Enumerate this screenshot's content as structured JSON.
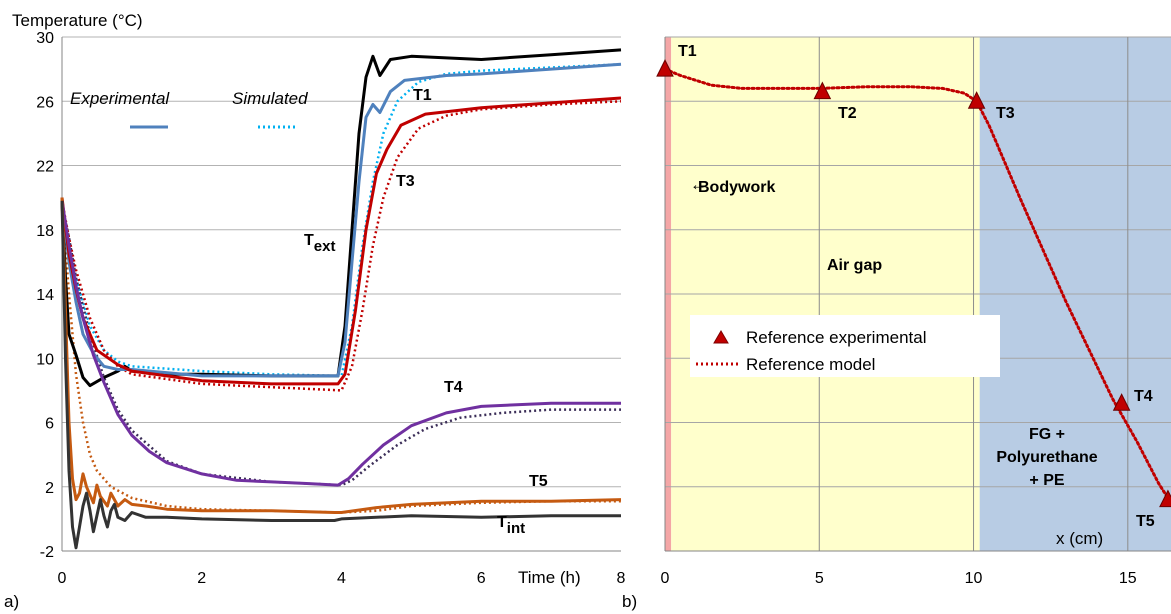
{
  "chart_data": [
    {
      "type": "line",
      "panel_label": "a)",
      "ylabel": "Temperature (°C)",
      "xlabel": "Time (h)",
      "xlim": [
        0,
        8
      ],
      "ylim": [
        -2,
        30
      ],
      "x_ticks": [
        "0",
        "2",
        "4",
        "6",
        "8"
      ],
      "y_ticks": [
        "-2",
        "2",
        "6",
        "10",
        "14",
        "18",
        "22",
        "26",
        "30"
      ],
      "grid": "horizontal",
      "legend": {
        "position": "top-left",
        "entries": [
          {
            "label": "Experimental",
            "style": "solid",
            "color": "#4F81BD"
          },
          {
            "label": "Simulated",
            "style": "dotted",
            "color": "#00B0F0"
          }
        ]
      },
      "series": [
        {
          "name": "Text",
          "label_main": "T",
          "label_sub": "ext",
          "kind": "experimental",
          "color": "#000000",
          "points": [
            [
              0,
              19.8
            ],
            [
              0.05,
              15
            ],
            [
              0.1,
              11.5
            ],
            [
              0.2,
              10.2
            ],
            [
              0.3,
              8.8
            ],
            [
              0.4,
              8.3
            ],
            [
              0.6,
              8.8
            ],
            [
              0.8,
              9.2
            ],
            [
              0.9,
              9.5
            ],
            [
              1.0,
              9.2
            ],
            [
              1.5,
              9.0
            ],
            [
              2,
              9.0
            ],
            [
              3,
              8.9
            ],
            [
              3.95,
              8.9
            ],
            [
              4.05,
              12
            ],
            [
              4.15,
              18
            ],
            [
              4.25,
              24
            ],
            [
              4.35,
              27.5
            ],
            [
              4.45,
              28.8
            ],
            [
              4.55,
              27.6
            ],
            [
              4.7,
              28.6
            ],
            [
              5,
              28.8
            ],
            [
              6,
              28.6
            ],
            [
              7,
              28.9
            ],
            [
              8,
              29.2
            ]
          ]
        },
        {
          "name": "T1",
          "kind": "experimental",
          "color": "#4F81BD",
          "points": [
            [
              0,
              19.8
            ],
            [
              0.1,
              16
            ],
            [
              0.2,
              13.5
            ],
            [
              0.3,
              11.5
            ],
            [
              0.45,
              10.3
            ],
            [
              0.6,
              9.5
            ],
            [
              0.8,
              9.3
            ],
            [
              1,
              9.3
            ],
            [
              2,
              8.9
            ],
            [
              3,
              8.9
            ],
            [
              3.95,
              8.9
            ],
            [
              4.05,
              11
            ],
            [
              4.15,
              16
            ],
            [
              4.25,
              21
            ],
            [
              4.35,
              25
            ],
            [
              4.45,
              25.8
            ],
            [
              4.55,
              25.3
            ],
            [
              4.7,
              26.6
            ],
            [
              4.9,
              27.3
            ],
            [
              5.5,
              27.6
            ],
            [
              6,
              27.7
            ],
            [
              7,
              28.0
            ],
            [
              8,
              28.3
            ]
          ]
        },
        {
          "name": "T1",
          "kind": "simulated",
          "color": "#00B0F0",
          "points": [
            [
              0,
              19.5
            ],
            [
              0.1,
              17
            ],
            [
              0.2,
              15
            ],
            [
              0.4,
              12
            ],
            [
              0.6,
              10.5
            ],
            [
              0.8,
              9.8
            ],
            [
              1,
              9.5
            ],
            [
              2,
              9.2
            ],
            [
              3,
              9.0
            ],
            [
              4,
              8.9
            ],
            [
              4.15,
              12
            ],
            [
              4.3,
              17
            ],
            [
              4.45,
              21
            ],
            [
              4.6,
              24
            ],
            [
              4.8,
              26
            ],
            [
              5.1,
              27.2
            ],
            [
              5.5,
              27.7
            ],
            [
              6,
              27.9
            ],
            [
              7,
              28.1
            ],
            [
              8,
              28.3
            ]
          ]
        },
        {
          "name": "T3",
          "kind": "experimental",
          "color": "#C00000",
          "points": [
            [
              0,
              20.0
            ],
            [
              0.05,
              18.2
            ],
            [
              0.1,
              16.5
            ],
            [
              0.2,
              14.3
            ],
            [
              0.3,
              12.5
            ],
            [
              0.5,
              10.5
            ],
            [
              0.8,
              9.6
            ],
            [
              1,
              9.2
            ],
            [
              1.5,
              8.9
            ],
            [
              2,
              8.6
            ],
            [
              3,
              8.4
            ],
            [
              3.95,
              8.4
            ],
            [
              4.05,
              9
            ],
            [
              4.2,
              13
            ],
            [
              4.35,
              18
            ],
            [
              4.5,
              21.5
            ],
            [
              4.65,
              23
            ],
            [
              4.85,
              24.5
            ],
            [
              5.2,
              25.2
            ],
            [
              6,
              25.6
            ],
            [
              7,
              25.9
            ],
            [
              8,
              26.2
            ]
          ]
        },
        {
          "name": "T3",
          "kind": "simulated",
          "color": "#C00000",
          "points": [
            [
              0,
              19.8
            ],
            [
              0.1,
              17.5
            ],
            [
              0.2,
              15.5
            ],
            [
              0.4,
              12.5
            ],
            [
              0.6,
              10.5
            ],
            [
              0.8,
              9.5
            ],
            [
              1,
              9
            ],
            [
              2,
              8.4
            ],
            [
              3,
              8.2
            ],
            [
              4,
              8.0
            ],
            [
              4.15,
              9.5
            ],
            [
              4.3,
              13
            ],
            [
              4.45,
              17
            ],
            [
              4.6,
              20
            ],
            [
              4.8,
              22.5
            ],
            [
              5.1,
              24.3
            ],
            [
              5.5,
              25.1
            ],
            [
              6,
              25.5
            ],
            [
              7,
              25.8
            ],
            [
              8,
              26.0
            ]
          ]
        },
        {
          "name": "T4",
          "kind": "experimental",
          "color": "#7030A0",
          "points": [
            [
              0,
              19.8
            ],
            [
              0.1,
              17
            ],
            [
              0.2,
              14.5
            ],
            [
              0.3,
              12.5
            ],
            [
              0.45,
              10.2
            ],
            [
              0.6,
              8.5
            ],
            [
              0.8,
              6.5
            ],
            [
              1,
              5.2
            ],
            [
              1.25,
              4.2
            ],
            [
              1.5,
              3.5
            ],
            [
              2,
              2.8
            ],
            [
              2.5,
              2.4
            ],
            [
              3,
              2.3
            ],
            [
              3.5,
              2.2
            ],
            [
              3.95,
              2.1
            ],
            [
              4.1,
              2.5
            ],
            [
              4.3,
              3.4
            ],
            [
              4.6,
              4.6
            ],
            [
              5,
              5.8
            ],
            [
              5.5,
              6.6
            ],
            [
              6,
              7.0
            ],
            [
              7,
              7.2
            ],
            [
              8,
              7.2
            ]
          ]
        },
        {
          "name": "T4",
          "kind": "simulated",
          "color": "#3B2E58",
          "points": [
            [
              0,
              19.6
            ],
            [
              0.1,
              17.5
            ],
            [
              0.2,
              15
            ],
            [
              0.4,
              11.5
            ],
            [
              0.6,
              8.8
            ],
            [
              0.8,
              6.8
            ],
            [
              1,
              5.5
            ],
            [
              1.5,
              3.6
            ],
            [
              2,
              2.8
            ],
            [
              3,
              2.3
            ],
            [
              4,
              2.1
            ],
            [
              4.15,
              2.4
            ],
            [
              4.4,
              3.3
            ],
            [
              4.8,
              4.6
            ],
            [
              5.2,
              5.6
            ],
            [
              5.7,
              6.3
            ],
            [
              6.3,
              6.6
            ],
            [
              7,
              6.8
            ],
            [
              8,
              6.8
            ]
          ]
        },
        {
          "name": "T5",
          "kind": "experimental",
          "color": "#C55A11",
          "points": [
            [
              0,
              20
            ],
            [
              0.05,
              13
            ],
            [
              0.1,
              6
            ],
            [
              0.15,
              2.5
            ],
            [
              0.2,
              1.2
            ],
            [
              0.25,
              1.6
            ],
            [
              0.3,
              2.8
            ],
            [
              0.35,
              2.0
            ],
            [
              0.45,
              1.0
            ],
            [
              0.5,
              2.1
            ],
            [
              0.55,
              1.4
            ],
            [
              0.65,
              0.8
            ],
            [
              0.7,
              1.6
            ],
            [
              0.8,
              0.8
            ],
            [
              0.9,
              1.2
            ],
            [
              1,
              0.9
            ],
            [
              1.2,
              0.8
            ],
            [
              1.5,
              0.6
            ],
            [
              2,
              0.5
            ],
            [
              3,
              0.5
            ],
            [
              3.9,
              0.4
            ],
            [
              4,
              0.4
            ],
            [
              4.5,
              0.7
            ],
            [
              5,
              0.9
            ],
            [
              6,
              1.1
            ],
            [
              7,
              1.1
            ],
            [
              8,
              1.2
            ]
          ]
        },
        {
          "name": "T5",
          "kind": "simulated",
          "color": "#C55A11",
          "points": [
            [
              0,
              20
            ],
            [
              0.1,
              14
            ],
            [
              0.2,
              9
            ],
            [
              0.3,
              6
            ],
            [
              0.4,
              4
            ],
            [
              0.5,
              3
            ],
            [
              0.7,
              2
            ],
            [
              1,
              1.3
            ],
            [
              1.5,
              0.8
            ],
            [
              2,
              0.6
            ],
            [
              3,
              0.5
            ],
            [
              4,
              0.4
            ],
            [
              4.5,
              0.5
            ],
            [
              5,
              0.8
            ],
            [
              6,
              1.0
            ],
            [
              7,
              1.1
            ],
            [
              8,
              1.1
            ]
          ]
        },
        {
          "name": "Tint",
          "label_main": "T",
          "label_sub": "int",
          "kind": "experimental",
          "color": "#333333",
          "points": [
            [
              0,
              19.8
            ],
            [
              0.05,
              10
            ],
            [
              0.1,
              3
            ],
            [
              0.15,
              -0.5
            ],
            [
              0.2,
              -1.8
            ],
            [
              0.25,
              -0.5
            ],
            [
              0.3,
              0.8
            ],
            [
              0.35,
              1.6
            ],
            [
              0.4,
              0.5
            ],
            [
              0.45,
              -0.8
            ],
            [
              0.5,
              0.2
            ],
            [
              0.55,
              1.2
            ],
            [
              0.6,
              0.2
            ],
            [
              0.65,
              -0.5
            ],
            [
              0.7,
              0.5
            ],
            [
              0.75,
              0.9
            ],
            [
              0.8,
              0.1
            ],
            [
              0.9,
              -0.1
            ],
            [
              1,
              0.4
            ],
            [
              1.2,
              0.1
            ],
            [
              1.5,
              0.1
            ],
            [
              2,
              0.0
            ],
            [
              3,
              -0.1
            ],
            [
              3.9,
              -0.1
            ],
            [
              4,
              0
            ],
            [
              5,
              0.2
            ],
            [
              6,
              0.1
            ],
            [
              7,
              0.2
            ],
            [
              8,
              0.2
            ]
          ]
        }
      ]
    },
    {
      "type": "scatter",
      "panel_label": "b)",
      "xlabel": "x (cm)",
      "xlim": [
        0,
        16.4
      ],
      "ylim": [
        -2,
        30
      ],
      "x_ticks": [
        "0",
        "5",
        "10",
        "15"
      ],
      "grid": "vertical and horizontal",
      "regions": [
        {
          "label": "Bodywork",
          "x0": 0,
          "x1": 0.2,
          "color": "#F4A6A6"
        },
        {
          "label": "Air gap",
          "x0": 0.2,
          "x1": 10.2,
          "color": "#FFFFCC"
        },
        {
          "label_lines": [
            "FG +",
            "Polyurethane",
            "+ PE"
          ],
          "x0": 10.2,
          "x1": 16.4,
          "color": "#B8CCE4"
        }
      ],
      "legend": {
        "position": "center-left",
        "entries": [
          {
            "label": "Reference experimental",
            "style": "triangle",
            "color": "#C00000"
          },
          {
            "label": "Reference model",
            "style": "dotted",
            "color": "#C00000"
          }
        ]
      },
      "experimental_points": [
        {
          "label": "T1",
          "x": 0,
          "y": 28.0
        },
        {
          "label": "T2",
          "x": 5.1,
          "y": 26.6
        },
        {
          "label": "T3",
          "x": 10.1,
          "y": 26.0
        },
        {
          "label": "T4",
          "x": 14.8,
          "y": 7.2
        },
        {
          "label": "T5",
          "x": 16.3,
          "y": 1.2
        }
      ],
      "model_curve": [
        [
          0,
          28.0
        ],
        [
          0.5,
          27.6
        ],
        [
          1.5,
          27.0
        ],
        [
          2.5,
          26.8
        ],
        [
          3.5,
          26.8
        ],
        [
          5,
          26.8
        ],
        [
          6.5,
          26.9
        ],
        [
          8,
          26.9
        ],
        [
          9,
          26.8
        ],
        [
          9.7,
          26.5
        ],
        [
          10.1,
          26.0
        ],
        [
          10.5,
          24.5
        ],
        [
          11.5,
          20.0
        ],
        [
          13,
          13.5
        ],
        [
          14.5,
          7.5
        ],
        [
          15.3,
          4.8
        ],
        [
          16.0,
          2.2
        ],
        [
          16.4,
          1.0
        ]
      ],
      "annotations": [
        {
          "text": "Bodywork",
          "arrow": "left"
        },
        {
          "text": "Air gap"
        }
      ]
    }
  ]
}
